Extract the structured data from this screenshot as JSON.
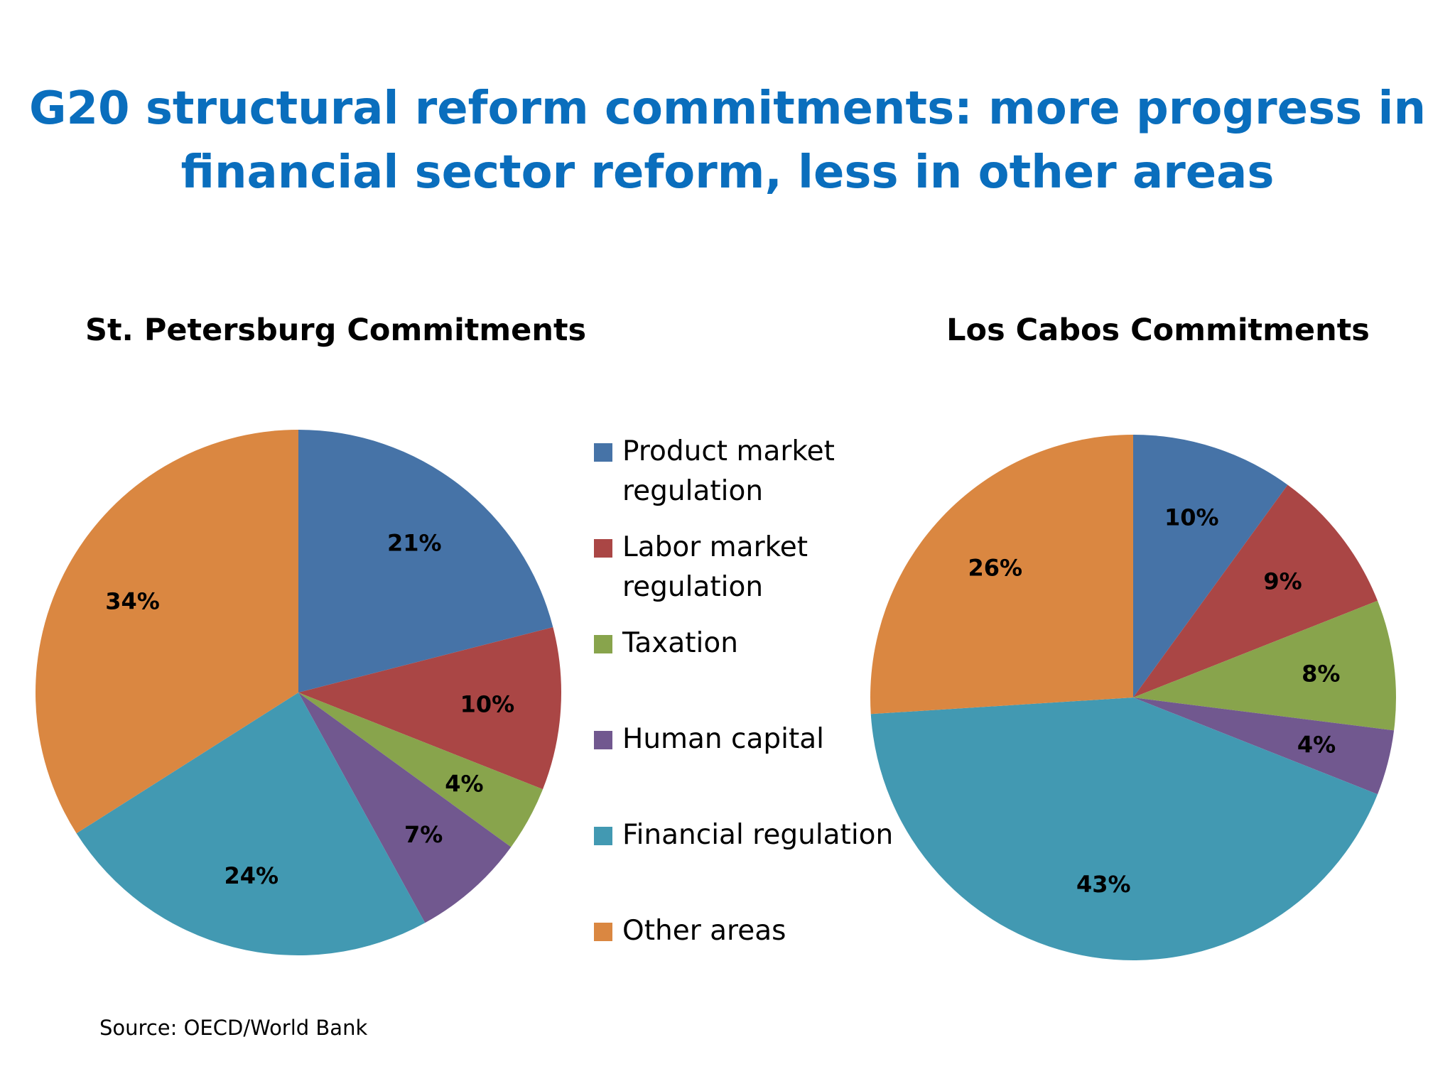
{
  "title_lines": [
    "G20 structural reform commitments: more progress in",
    "financial sector reform, less in other areas"
  ],
  "source": "Source: OECD/World Bank",
  "colors": {
    "title": "#0a6ebd",
    "product_market": "#4673a7",
    "labor_market": "#aa4645",
    "taxation": "#88a44c",
    "human_capital": "#71588f",
    "financial": "#4299b2",
    "other": "#da8741"
  },
  "legend": [
    "Product market regulation",
    "Labor market regulation",
    "Taxation",
    "Human capital",
    "Financial regulation",
    "Other areas"
  ],
  "chart_data": [
    {
      "type": "pie",
      "title": "St. Petersburg Commitments",
      "categories": [
        "Product market regulation",
        "Labor market regulation",
        "Taxation",
        "Human capital",
        "Financial regulation",
        "Other areas"
      ],
      "values": [
        21,
        10,
        4,
        7,
        24,
        34
      ],
      "labels": [
        "21%",
        "10%",
        "4%",
        "7%",
        "24%",
        "34%"
      ],
      "start": "12 o'clock, clockwise",
      "legend_position": "right"
    },
    {
      "type": "pie",
      "title": "Los Cabos Commitments",
      "categories": [
        "Product market regulation",
        "Labor market regulation",
        "Taxation",
        "Human capital",
        "Financial regulation",
        "Other areas"
      ],
      "values": [
        10,
        9,
        8,
        4,
        43,
        26
      ],
      "labels": [
        "10%",
        "9%",
        "8%",
        "4%",
        "43%",
        "26%"
      ],
      "start": "12 o'clock, clockwise",
      "legend_position": "left"
    }
  ]
}
